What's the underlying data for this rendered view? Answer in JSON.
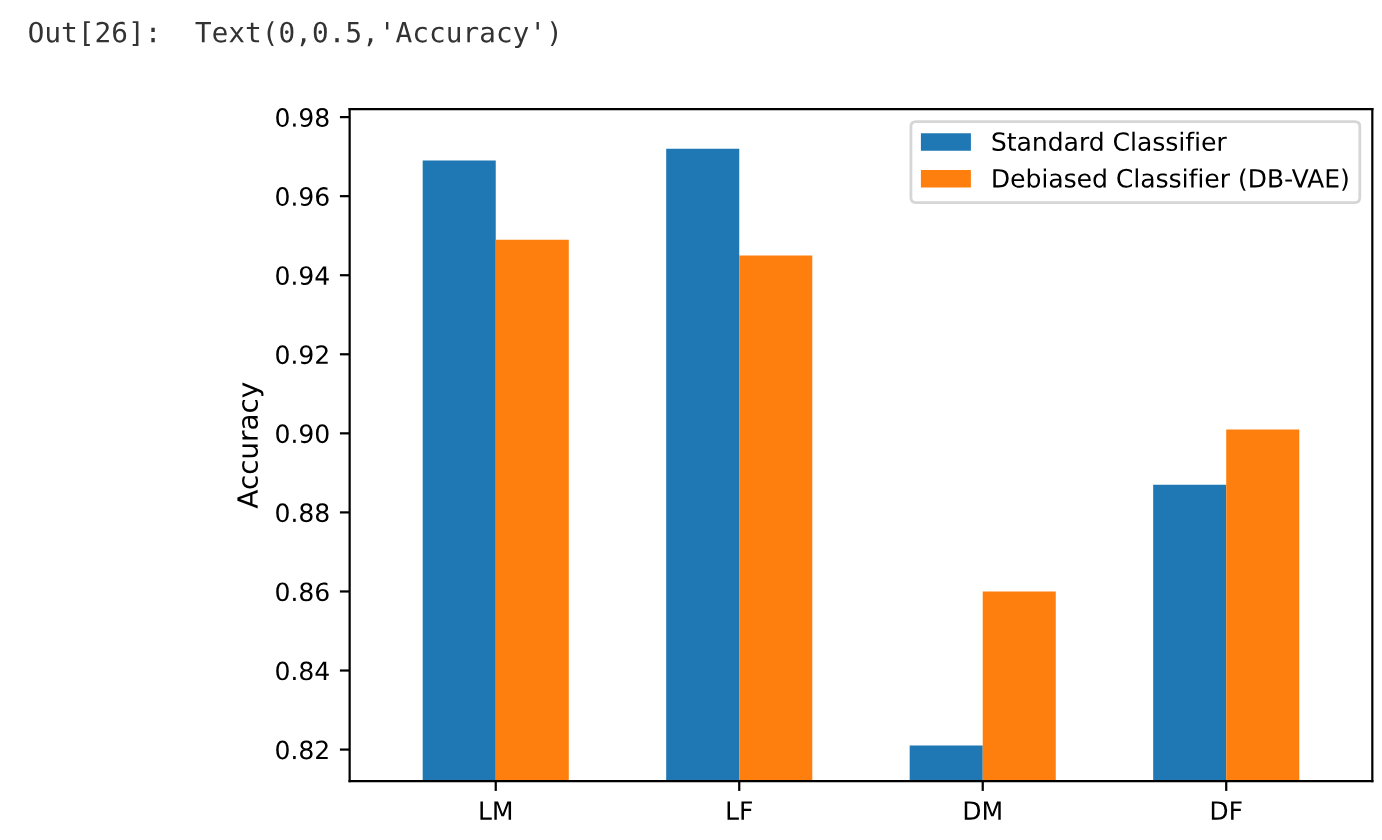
{
  "chart_data": {
    "type": "bar",
    "ylabel": "Accuracy",
    "annotations": [
      "Out[26]:  Text(0,0.5,'Accuracy')"
    ],
    "categories": [
      "LM",
      "LF",
      "DM",
      "DF"
    ],
    "series": [
      {
        "name": "Standard Classifier",
        "color": "#1f77b4",
        "values": [
          0.969,
          0.972,
          0.821,
          0.887
        ]
      },
      {
        "name": "Debiased Classifier (DB-VAE)",
        "color": "#ff7f0e",
        "values": [
          0.949,
          0.945,
          0.86,
          0.901
        ]
      }
    ],
    "ylim": [
      0.812,
      0.982
    ],
    "yticks": [
      0.82,
      0.84,
      0.86,
      0.88,
      {
        "value": 0.9,
        "label": "0.90"
      },
      0.92,
      0.94,
      0.96,
      0.98
    ],
    "legend": "top right",
    "grid": false
  }
}
